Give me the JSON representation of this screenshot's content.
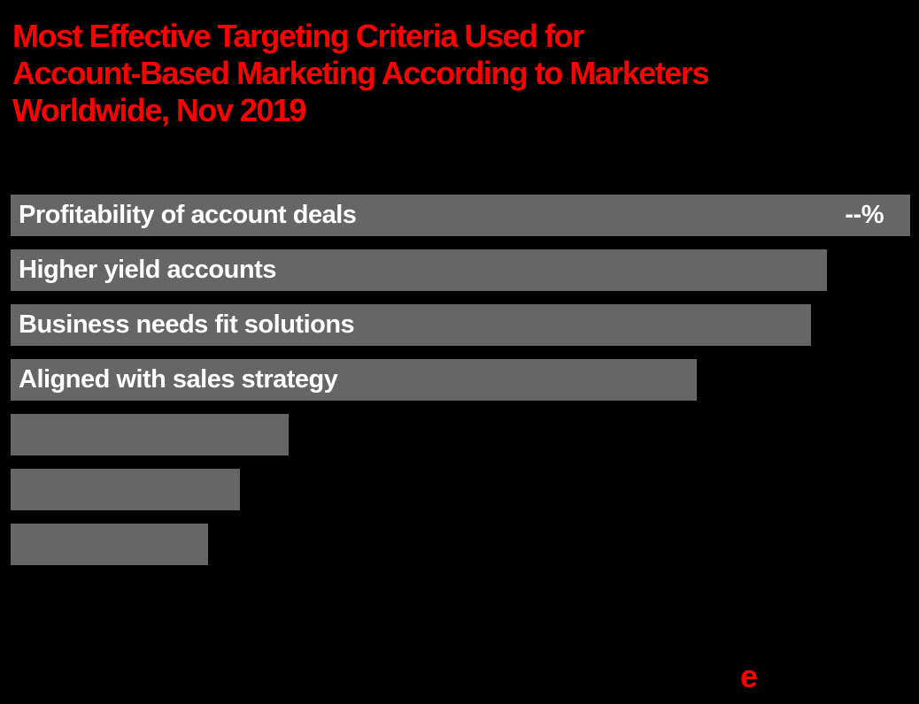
{
  "title": {
    "lines": [
      "Most Effective Targeting Criteria Used for",
      "Account-Based Marketing According to Marketers",
      "Worldwide, Nov 2019"
    ],
    "color": "#fe0000"
  },
  "logo": {
    "text": "e",
    "color": "#fe0000"
  },
  "colors": {
    "background": "#000000",
    "bar": "#666666",
    "bar_label": "#ffffff",
    "title": "#fe0000"
  },
  "chart_data": {
    "type": "bar",
    "orientation": "horizontal",
    "title": "Most Effective Targeting Criteria Used for Account-Based Marketing According to Marketers Worldwide, Nov 2019",
    "note": "numeric values are hidden in the chart; first bar shows placeholder --%",
    "legend": "none",
    "grid": false,
    "axis_labels": "none",
    "bars": [
      {
        "label": "Profitability of account deals",
        "value_label": "--%",
        "width_pct": 100
      },
      {
        "label": "Higher yield accounts",
        "value_label": "",
        "width_pct": 90.7
      },
      {
        "label": "Business needs fit solutions",
        "value_label": "",
        "width_pct": 89.0
      },
      {
        "label": "Aligned with sales strategy",
        "value_label": "",
        "width_pct": 76.3
      },
      {
        "label": "",
        "value_label": "",
        "width_pct": 30.9
      },
      {
        "label": "",
        "value_label": "",
        "width_pct": 25.5
      },
      {
        "label": "",
        "value_label": "",
        "width_pct": 21.9
      }
    ]
  }
}
